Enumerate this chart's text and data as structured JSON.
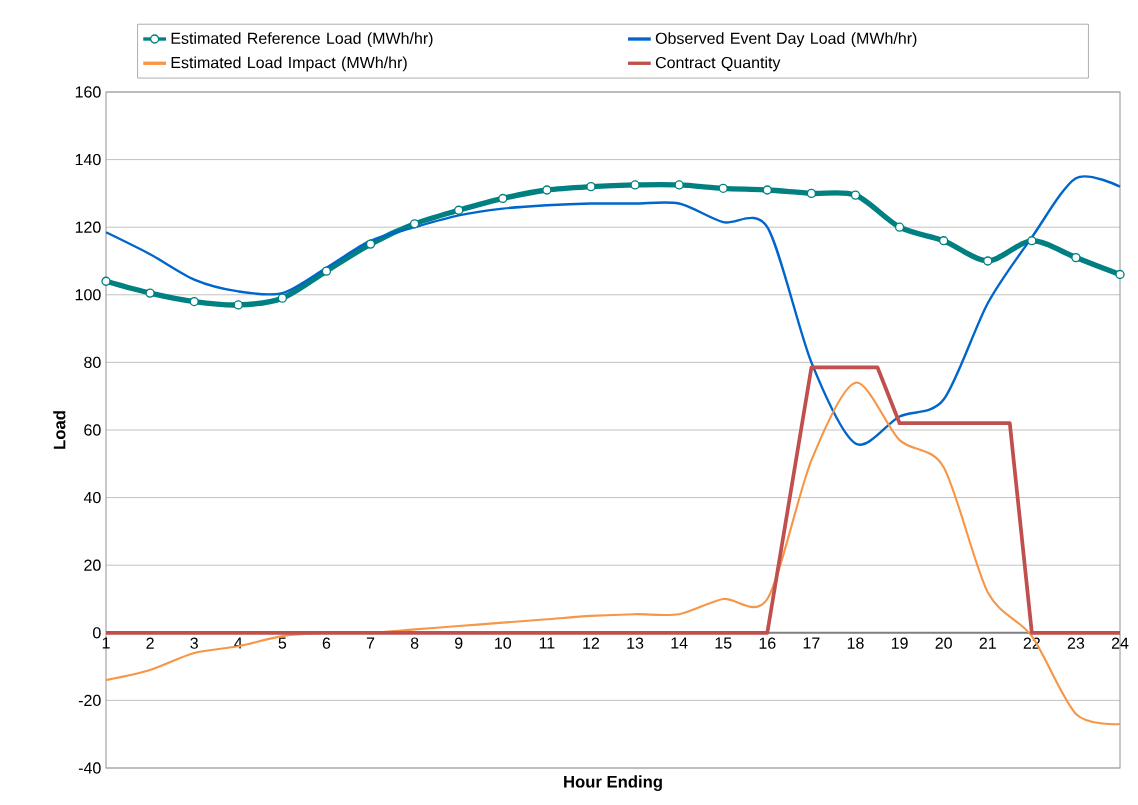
{
  "chart_data": {
    "type": "line",
    "xlabel": "Hour Ending",
    "ylabel": "Load",
    "x": [
      1,
      2,
      3,
      4,
      5,
      6,
      7,
      8,
      9,
      10,
      11,
      12,
      13,
      14,
      15,
      16,
      17,
      18,
      19,
      20,
      21,
      22,
      23,
      24
    ],
    "xlim": [
      1,
      24
    ],
    "xticks": [
      1,
      2,
      3,
      4,
      5,
      6,
      7,
      8,
      9,
      10,
      11,
      12,
      13,
      14,
      15,
      16,
      17,
      18,
      19,
      20,
      21,
      22,
      23,
      24
    ],
    "ylim": [
      -40,
      160
    ],
    "yticks": [
      -40,
      -20,
      0,
      20,
      40,
      60,
      80,
      100,
      120,
      140,
      160
    ],
    "grid": "y",
    "legend": "top",
    "series": [
      {
        "name": "Estimated Reference Load (MWh/hr)",
        "color": "#008080",
        "marker": "circle",
        "values": [
          104,
          100.5,
          98,
          97,
          99,
          107,
          115,
          121,
          125,
          128.5,
          131,
          132,
          132.5,
          132.5,
          131.5,
          131,
          130,
          129.5,
          120,
          116,
          110,
          116,
          111,
          106
        ]
      },
      {
        "name": "Observed Event Day Load (MWh/hr)",
        "color": "#0066cc",
        "values": [
          118.5,
          112,
          104.5,
          101,
          100.5,
          108,
          116,
          120,
          123.5,
          125.5,
          126.5,
          127,
          127,
          127,
          121.5,
          120,
          80,
          56,
          64,
          69,
          97.5,
          117,
          134.5,
          132
        ]
      },
      {
        "name": "Estimated Load Impact (MWh/hr)",
        "color": "#f79646",
        "values": [
          -14,
          -11,
          -6,
          -4,
          -1,
          0,
          0,
          1,
          2,
          3,
          4,
          5,
          5.5,
          5.5,
          10,
          10,
          51,
          74,
          57,
          49,
          12,
          -1,
          -24,
          -27
        ]
      },
      {
        "name": "Contract Quantity",
        "color": "#c0504d",
        "x": [
          1,
          16,
          17,
          18.5,
          19,
          21.5,
          22,
          24
        ],
        "values": [
          0,
          0,
          78.5,
          78.5,
          62,
          62,
          0,
          0
        ]
      }
    ]
  }
}
